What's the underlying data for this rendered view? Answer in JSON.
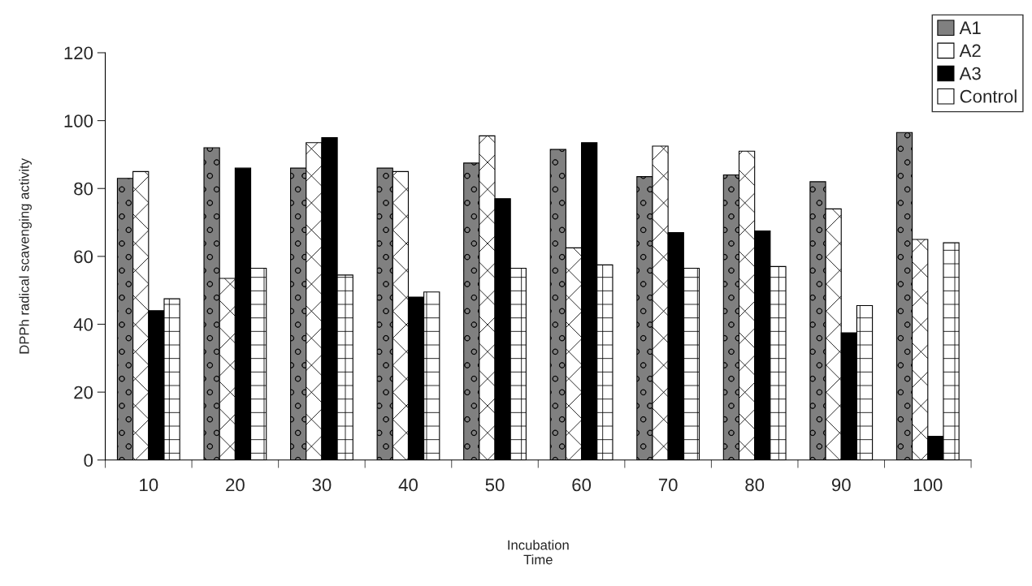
{
  "chart_data": {
    "type": "bar",
    "xlabel": "Incubation\nTime",
    "ylabel": "DPPh radical scavenging activity",
    "categories": [
      "10",
      "20",
      "30",
      "40",
      "50",
      "60",
      "70",
      "80",
      "90",
      "100"
    ],
    "series": [
      {
        "name": "A1",
        "color": "#808080",
        "values": [
          83,
          92,
          86,
          86,
          87.5,
          91.5,
          83.5,
          84,
          82,
          96.5
        ]
      },
      {
        "name": "A2",
        "color": "#ffffff",
        "values": [
          85,
          53.5,
          93.5,
          85,
          95.5,
          62.5,
          92.5,
          91,
          74,
          65
        ]
      },
      {
        "name": "A3",
        "color": "#000000",
        "values": [
          44,
          86,
          95,
          48,
          77,
          93.5,
          67,
          67.5,
          37.5,
          7
        ]
      },
      {
        "name": "Control",
        "color": "#ffffff",
        "values": [
          47.5,
          56.5,
          54.5,
          49.5,
          56.5,
          57.5,
          56.5,
          57,
          45.5,
          64
        ]
      }
    ],
    "ylim": [
      0,
      120
    ],
    "yticks": [
      0,
      20,
      40,
      60,
      80,
      100,
      120
    ],
    "grid": false,
    "legend": "top right"
  }
}
